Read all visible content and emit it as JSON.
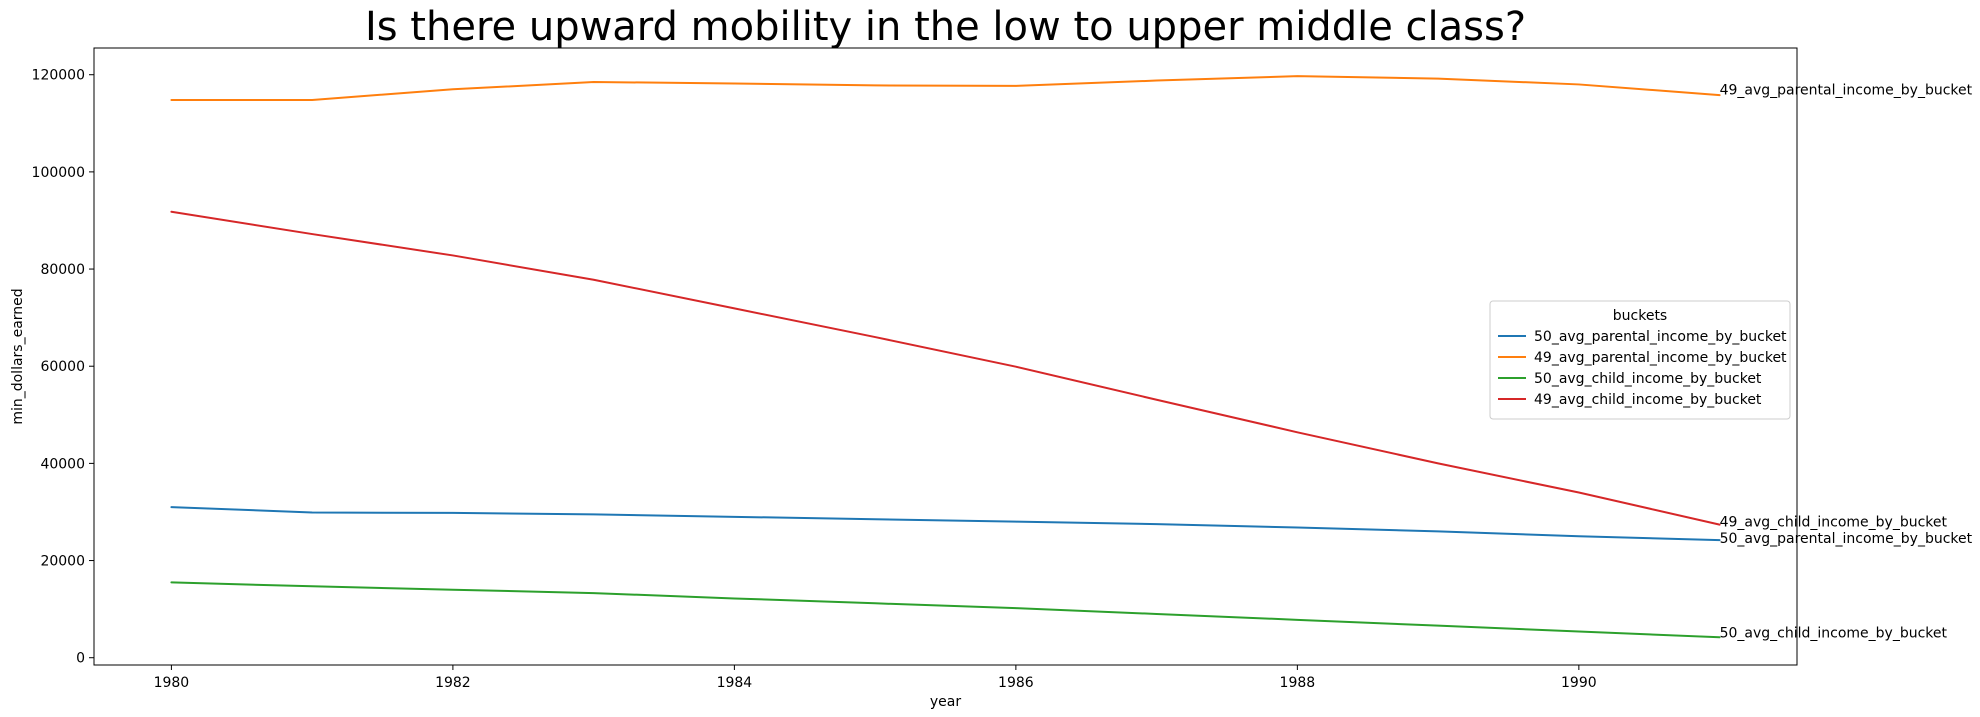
{
  "chart_data": {
    "type": "line",
    "title": "Is there upward mobility in the low to upper middle class?",
    "xlabel": "year",
    "ylabel": "min_dollars_earned",
    "xlim": [
      1979.45,
      1991.55
    ],
    "ylim": [
      -1500,
      125500
    ],
    "x_ticks": [
      1980,
      1982,
      1984,
      1986,
      1988,
      1990
    ],
    "y_ticks": [
      0,
      20000,
      40000,
      60000,
      80000,
      100000,
      120000
    ],
    "grid": false,
    "legend": {
      "title": "buckets",
      "placement": "center-right"
    },
    "x": [
      1980,
      1981,
      1982,
      1983,
      1984,
      1985,
      1986,
      1987,
      1988,
      1989,
      1990,
      1991
    ],
    "series": [
      {
        "name": "50_avg_parental_income_by_bucket",
        "color": "#1f77b4",
        "values": [
          31000,
          29900,
          29800,
          29500,
          29000,
          28500,
          28000,
          27500,
          26800,
          26000,
          25000,
          24200
        ]
      },
      {
        "name": "49_avg_parental_income_by_bucket",
        "color": "#ff7f0e",
        "values": [
          114800,
          114800,
          117000,
          118500,
          118200,
          117800,
          117700,
          118800,
          119700,
          119200,
          118000,
          115800
        ]
      },
      {
        "name": "50_avg_child_income_by_bucket",
        "color": "#2ca02c",
        "values": [
          15500,
          14700,
          14000,
          13300,
          12200,
          11200,
          10200,
          9000,
          7800,
          6600,
          5400,
          4200
        ]
      },
      {
        "name": "49_avg_child_income_by_bucket",
        "color": "#d62728",
        "values": [
          91800,
          87200,
          82800,
          77800,
          71900,
          66000,
          59900,
          53100,
          46400,
          40000,
          34000,
          27400
        ]
      }
    ],
    "annotations": [
      {
        "text": "49_avg_parental_income_by_bucket",
        "x": 1991,
        "y": 117000
      },
      {
        "text": "49_avg_child_income_by_bucket",
        "x": 1991,
        "y": 28000
      },
      {
        "text": "50_avg_parental_income_by_bucket",
        "x": 1991,
        "y": 24600
      },
      {
        "text": "50_avg_child_income_by_bucket",
        "x": 1991,
        "y": 5200
      }
    ]
  }
}
